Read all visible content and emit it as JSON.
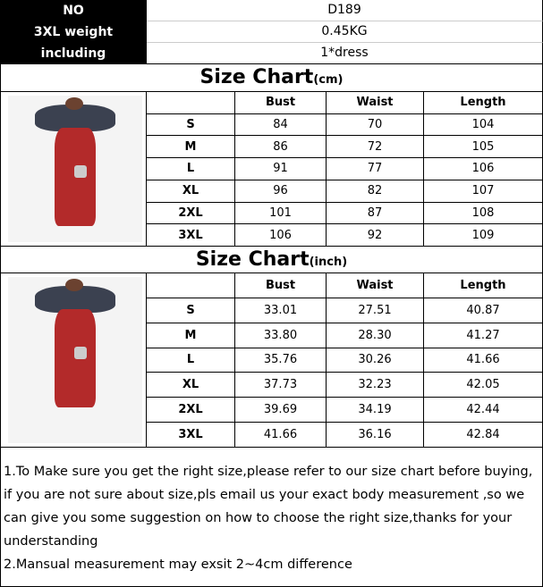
{
  "info": [
    {
      "label": "NO",
      "value": "D189"
    },
    {
      "label": "3XL weight",
      "value": "0.45KG"
    },
    {
      "label": "including",
      "value": "1*dress"
    }
  ],
  "cm": {
    "title": "Size Chart",
    "unit": "(cm)",
    "headers": [
      "Bust",
      "Waist",
      "Length"
    ],
    "rows": [
      [
        "S",
        "84",
        "70",
        "104"
      ],
      [
        "M",
        "86",
        "72",
        "105"
      ],
      [
        "L",
        "91",
        "77",
        "106"
      ],
      [
        "XL",
        "96",
        "82",
        "107"
      ],
      [
        "2XL",
        "101",
        "87",
        "108"
      ],
      [
        "3XL",
        "106",
        "92",
        "109"
      ]
    ]
  },
  "inch": {
    "title": "Size Chart",
    "unit": "(inch)",
    "headers": [
      "Bust",
      "Waist",
      "Length"
    ],
    "rows": [
      [
        "S",
        "33.01",
        "27.51",
        "40.87"
      ],
      [
        "M",
        "33.80",
        "28.30",
        "41.27"
      ],
      [
        "L",
        "35.76",
        "30.26",
        "41.66"
      ],
      [
        "XL",
        "37.73",
        "32.23",
        "42.05"
      ],
      [
        "2XL",
        "39.69",
        "34.19",
        "42.44"
      ],
      [
        "3XL",
        "41.66",
        "36.16",
        "42.84"
      ]
    ]
  },
  "notes": [
    "1.To Make sure you get the right size,please refer to our size chart before buying, if you are not sure about size,pls email us your exact body measurement ,so we can give you some suggestion on how to choose the right size,thanks for your understanding",
    "2.Mansual measurement may exsit 2~4cm difference"
  ]
}
